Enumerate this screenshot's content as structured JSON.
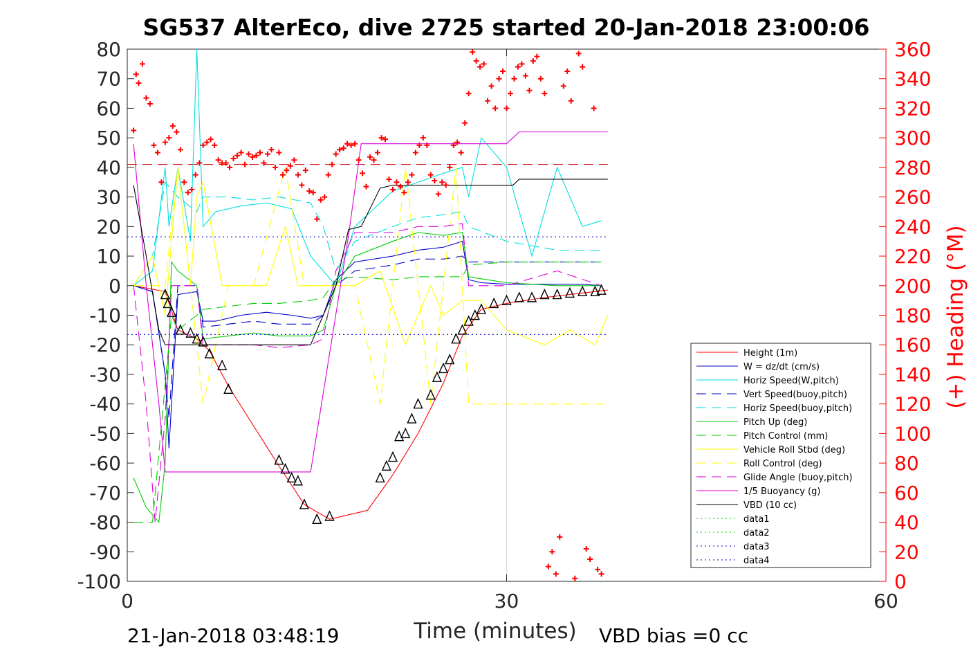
{
  "chart_data": {
    "type": "line",
    "title": "SG537 AlterEco, dive 2725 started 20-Jan-2018 23:00:06",
    "xlabel": "Time (minutes)",
    "ylabel_right": "(+) Heading (°M)",
    "footer_left": "21-Jan-2018 03:48:19",
    "footer_right": "VBD bias =0 cc",
    "xlim": [
      0,
      60
    ],
    "ylim": [
      -100,
      80
    ],
    "y2lim": [
      0,
      360
    ],
    "x_ticks": [
      "0",
      "30",
      "60"
    ],
    "y_ticks": [
      "80",
      "70",
      "60",
      "50",
      "40",
      "30",
      "20",
      "10",
      "0",
      "-10",
      "-20",
      "-30",
      "-40",
      "-50",
      "-60",
      "-70",
      "-80",
      "-90",
      "-100"
    ],
    "y2_ticks": [
      "360",
      "340",
      "320",
      "300",
      "280",
      "260",
      "240",
      "220",
      "200",
      "180",
      "160",
      "140",
      "120",
      "100",
      "80",
      "60",
      "40",
      "20",
      "0"
    ],
    "grid": "x=30 only",
    "legend_position": "bottom-right",
    "series": [
      {
        "name": "Height (1m)",
        "color": "#ff0000",
        "style": "solid",
        "x": [
          0.5,
          3,
          4,
          5.5,
          6.5,
          8,
          12,
          14,
          16,
          19,
          21,
          23,
          25,
          26.5,
          28,
          30,
          33,
          35,
          37,
          38
        ],
        "y": [
          0,
          -2,
          -15,
          -18,
          -22,
          -34,
          -61,
          -74,
          -79,
          -76,
          -64,
          -50,
          -33,
          -17,
          -8,
          -6,
          -4,
          -3,
          -2,
          -1.5
        ]
      },
      {
        "name": "W = dz/dt (cm/s)",
        "color": "#0000cc",
        "style": "solid",
        "x": [
          0.5,
          2,
          3,
          3.3,
          4,
          5.5,
          6,
          7,
          9,
          11,
          13,
          14.5,
          15.5,
          16.5,
          18,
          21,
          23,
          25,
          26.5,
          27,
          28,
          30,
          32,
          34,
          36,
          37.5
        ],
        "y": [
          0,
          -2,
          -30,
          -55,
          -3,
          -2,
          -12,
          -12,
          -10,
          -9,
          -10,
          -11,
          -10,
          2,
          8,
          10,
          12,
          13,
          15,
          2,
          1,
          0.5,
          0.5,
          0.5,
          0.5,
          0
        ]
      },
      {
        "name": "Horiz Speed(W,pitch)",
        "color": "#00e0e0",
        "style": "solid",
        "x": [
          0.5,
          2,
          3,
          3.3,
          4,
          5,
          5.5,
          6,
          7,
          9,
          11,
          13,
          14.5,
          15.5,
          16.5,
          18,
          21,
          23,
          25,
          26.5,
          27,
          28,
          30,
          32,
          34,
          36,
          37.5
        ],
        "y": [
          0,
          5,
          40,
          20,
          40,
          15,
          80,
          20,
          25,
          27,
          28,
          26,
          10,
          5,
          0,
          20,
          32,
          35,
          38,
          40,
          30,
          50,
          40,
          10,
          40,
          20,
          22
        ]
      },
      {
        "name": "Vert Speed(buoy,pitch)",
        "color": "#0000cc",
        "style": "dashed",
        "x": [
          0.5,
          2,
          3,
          3.3,
          4,
          5.5,
          6,
          8,
          10,
          12,
          14.5,
          15.5,
          16.5,
          18,
          21,
          23,
          25,
          26.5,
          27,
          30,
          34,
          37.5
        ],
        "y": [
          0,
          -2,
          -30,
          -45,
          0,
          0,
          -14,
          -13,
          -12,
          -13,
          -13,
          -10,
          0,
          5,
          7,
          9,
          9,
          10,
          8,
          8,
          8,
          8
        ]
      },
      {
        "name": "Horiz Speed(buoy,pitch)",
        "color": "#00e0e0",
        "style": "dashed",
        "x": [
          0.5,
          2,
          3,
          4,
          5.5,
          6,
          8,
          10,
          12,
          14.5,
          15.5,
          16.5,
          18,
          21,
          23,
          25,
          26.5,
          27,
          30,
          34,
          37.5
        ],
        "y": [
          0,
          10,
          35,
          30,
          25,
          30,
          30,
          29,
          30,
          28,
          20,
          5,
          15,
          20,
          23,
          24,
          25,
          20,
          15,
          12,
          12
        ]
      },
      {
        "name": "Pitch Up (deg)",
        "color": "#00cc00",
        "style": "solid",
        "x": [
          0.5,
          1.5,
          2.5,
          3,
          3.5,
          4,
          5.5,
          6,
          8,
          10,
          12,
          14.5,
          15.5,
          16.5,
          18,
          21,
          23,
          25,
          26.5,
          27,
          30,
          34,
          37.5
        ],
        "y": [
          -65,
          -75,
          -80,
          -60,
          8,
          5,
          0,
          -18,
          -17,
          -16,
          -17,
          -17,
          -15,
          0,
          10,
          15,
          18,
          17,
          18,
          3,
          1,
          0,
          0
        ]
      },
      {
        "name": "Pitch Control (mm)",
        "color": "#00cc00",
        "style": "dashed",
        "x": [
          0.5,
          2,
          3.5,
          4,
          5.5,
          6,
          8,
          10,
          12,
          14.5,
          15.5,
          16.5,
          18,
          21,
          23,
          25,
          26.5,
          27,
          30,
          34,
          37.5
        ],
        "y": [
          -80,
          -80,
          -10,
          -15,
          -10,
          -8,
          -7,
          -6,
          -6,
          -5,
          -4,
          2,
          3,
          2,
          3,
          3,
          3,
          7,
          8,
          8,
          8
        ]
      },
      {
        "name": "Vehicle Roll Stbd (deg)",
        "color": "#ffff00",
        "style": "solid",
        "x": [
          0.5,
          2,
          3,
          4,
          5,
          5.5,
          6,
          7.5,
          9,
          11,
          12.5,
          13.5,
          14.5,
          16,
          18,
          20,
          22,
          24,
          25,
          26.5,
          28,
          30,
          33,
          35,
          37,
          38
        ],
        "y": [
          0,
          10,
          -10,
          40,
          0,
          30,
          35,
          0,
          0,
          0,
          20,
          0,
          0,
          0,
          0,
          5,
          -20,
          0,
          -10,
          -5,
          -5,
          -15,
          -20,
          -15,
          -20,
          -10
        ]
      },
      {
        "name": "Roll Control (deg)",
        "color": "#ffff00",
        "style": "dashed",
        "x": [
          0.5,
          3,
          4,
          5,
          6,
          8,
          10,
          12.5,
          14,
          16,
          18,
          20,
          22,
          24,
          26,
          27,
          30,
          34,
          38
        ],
        "y": [
          0,
          0,
          40,
          0,
          -40,
          0,
          0,
          40,
          0,
          0,
          0,
          -40,
          40,
          -40,
          40,
          -40,
          -40,
          -40,
          -40
        ]
      },
      {
        "name": "Glide Angle (buoy,pitch)",
        "color": "#dd00dd",
        "style": "dashed",
        "x": [
          0.5,
          1.5,
          2.2,
          3,
          3.5,
          4,
          5.5,
          6,
          8,
          10,
          12,
          14.5,
          15.5,
          16.5,
          18,
          21,
          23,
          25,
          26.5,
          27,
          30,
          34,
          37.5
        ],
        "y": [
          0,
          -40,
          -80,
          -45,
          0,
          0,
          0,
          -20,
          -20,
          -20,
          -21,
          -20,
          -18,
          5,
          18,
          18,
          20,
          20,
          21,
          0,
          0,
          5,
          0
        ]
      },
      {
        "name": "1/5 Buoyancy (g)",
        "color": "#dd00dd",
        "style": "solid",
        "x": [
          0.5,
          1.5,
          2.5,
          3,
          14.5,
          17.5,
          18.5,
          30,
          31,
          38
        ],
        "y": [
          48,
          0,
          -40,
          -63,
          -63,
          17,
          48,
          48,
          52,
          52
        ]
      },
      {
        "name": "VBD (10 cc)",
        "color": "#000000",
        "style": "solid",
        "x": [
          0.5,
          1.5,
          2.5,
          3,
          14.5,
          16.5,
          17.5,
          18.5,
          20,
          21,
          30.5,
          31,
          38
        ],
        "y": [
          34,
          10,
          -15,
          -20,
          -20,
          0,
          19,
          20,
          33,
          34,
          34,
          36,
          36
        ]
      },
      {
        "name": "data1",
        "color": "#00cc00",
        "style": "dotted",
        "x": [],
        "y": []
      },
      {
        "name": "data2",
        "color": "#00cc00",
        "style": "dotted",
        "x": [],
        "y": []
      },
      {
        "name": "data3",
        "color": "#0000cc",
        "style": "dotted",
        "x": [
          0,
          38
        ],
        "y": [
          16.5,
          16.5
        ]
      },
      {
        "name": "data4",
        "color": "#0000cc",
        "style": "dotted",
        "x": [
          0,
          38
        ],
        "y": [
          -16.5,
          -16.5
        ]
      }
    ],
    "reference_line": {
      "color": "#cc0000",
      "style": "dashed",
      "x": [
        0,
        38
      ],
      "y": [
        41,
        41
      ]
    },
    "heading_points": {
      "color": "#ff0000",
      "marker": "+",
      "axis": "right",
      "x": [
        0.5,
        0.7,
        0.9,
        1.2,
        1.5,
        1.8,
        2.1,
        2.4,
        2.7,
        3.0,
        3.3,
        3.6,
        3.9,
        4.2,
        4.5,
        4.8,
        5.1,
        5.4,
        5.7,
        6.0,
        6.3,
        6.6,
        6.9,
        7.2,
        7.5,
        7.8,
        8.1,
        8.4,
        8.7,
        9.0,
        9.3,
        9.6,
        9.9,
        10.2,
        10.5,
        10.8,
        11.1,
        11.4,
        11.7,
        12.0,
        12.3,
        12.6,
        12.9,
        13.2,
        13.5,
        13.8,
        14.1,
        14.4,
        14.7,
        15.0,
        15.3,
        15.6,
        15.9,
        16.2,
        16.5,
        16.8,
        17.1,
        17.4,
        17.7,
        18.0,
        18.3,
        18.6,
        18.9,
        19.2,
        19.5,
        19.8,
        20.1,
        20.4,
        20.7,
        21.0,
        21.3,
        21.6,
        21.9,
        22.2,
        22.5,
        22.8,
        23.1,
        23.4,
        23.7,
        24.0,
        24.3,
        24.6,
        24.9,
        25.2,
        25.5,
        25.8,
        26.1,
        26.4,
        26.7,
        27.0,
        27.3,
        27.6,
        27.9,
        28.2,
        28.5,
        28.8,
        29.1,
        29.4,
        29.7,
        30.0,
        30.3,
        30.6,
        30.9,
        31.2,
        31.5,
        31.8,
        32.1,
        32.4,
        32.7,
        33.0,
        33.3,
        33.6,
        33.9,
        34.2,
        34.5,
        34.8,
        35.1,
        35.4,
        35.7,
        36.0,
        36.3,
        36.6,
        36.9,
        37.2,
        37.5
      ],
      "y": [
        305,
        343,
        337,
        350,
        327,
        323,
        295,
        290,
        270,
        297,
        300,
        308,
        304,
        292,
        270,
        263,
        265,
        275,
        283,
        295,
        297,
        299,
        295,
        285,
        283,
        283,
        280,
        286,
        288,
        290,
        282,
        289,
        287,
        288,
        290,
        283,
        289,
        292,
        280,
        290,
        275,
        278,
        281,
        285,
        275,
        268,
        278,
        264,
        263,
        245,
        258,
        260,
        275,
        282,
        289,
        292,
        293,
        296,
        295,
        296,
        285,
        276,
        267,
        287,
        285,
        290,
        300,
        299,
        272,
        265,
        270,
        267,
        263,
        270,
        275,
        290,
        295,
        300,
        295,
        275,
        271,
        262,
        270,
        268,
        280,
        295,
        297,
        290,
        310,
        330,
        358,
        352,
        348,
        350,
        325,
        335,
        320,
        340,
        345,
        320,
        330,
        340,
        348,
        350,
        342,
        332,
        352,
        355,
        340,
        330,
        10,
        20,
        5,
        30,
        335,
        345,
        325,
        2,
        357,
        348,
        22,
        15,
        320,
        8,
        5
      ]
    },
    "depth_markers": {
      "color": "#000000",
      "marker": "triangle",
      "x": [
        3,
        3.2,
        3.5,
        4.2,
        5,
        5.5,
        6,
        6.5,
        7.5,
        8,
        12,
        12.5,
        13,
        13.5,
        14,
        15,
        16,
        20,
        20.5,
        21,
        21.5,
        22,
        22.5,
        23,
        24,
        24.5,
        25,
        25.5,
        26,
        26.5,
        27,
        27.5,
        28,
        29,
        30,
        31,
        32,
        33,
        34,
        35,
        36,
        37,
        37.5
      ],
      "y": [
        -3,
        -6,
        -9,
        -15,
        -16,
        -18,
        -19,
        -23,
        -27,
        -35,
        -59,
        -62,
        -65,
        -66,
        -74,
        -79,
        -78,
        -65,
        -61,
        -58,
        -51,
        -50,
        -45,
        -40,
        -37,
        -31,
        -28,
        -25,
        -18,
        -15,
        -12,
        -10,
        -8,
        -6,
        -5,
        -4,
        -4,
        -3,
        -3,
        -2.5,
        -2,
        -2,
        -1.5
      ]
    }
  }
}
